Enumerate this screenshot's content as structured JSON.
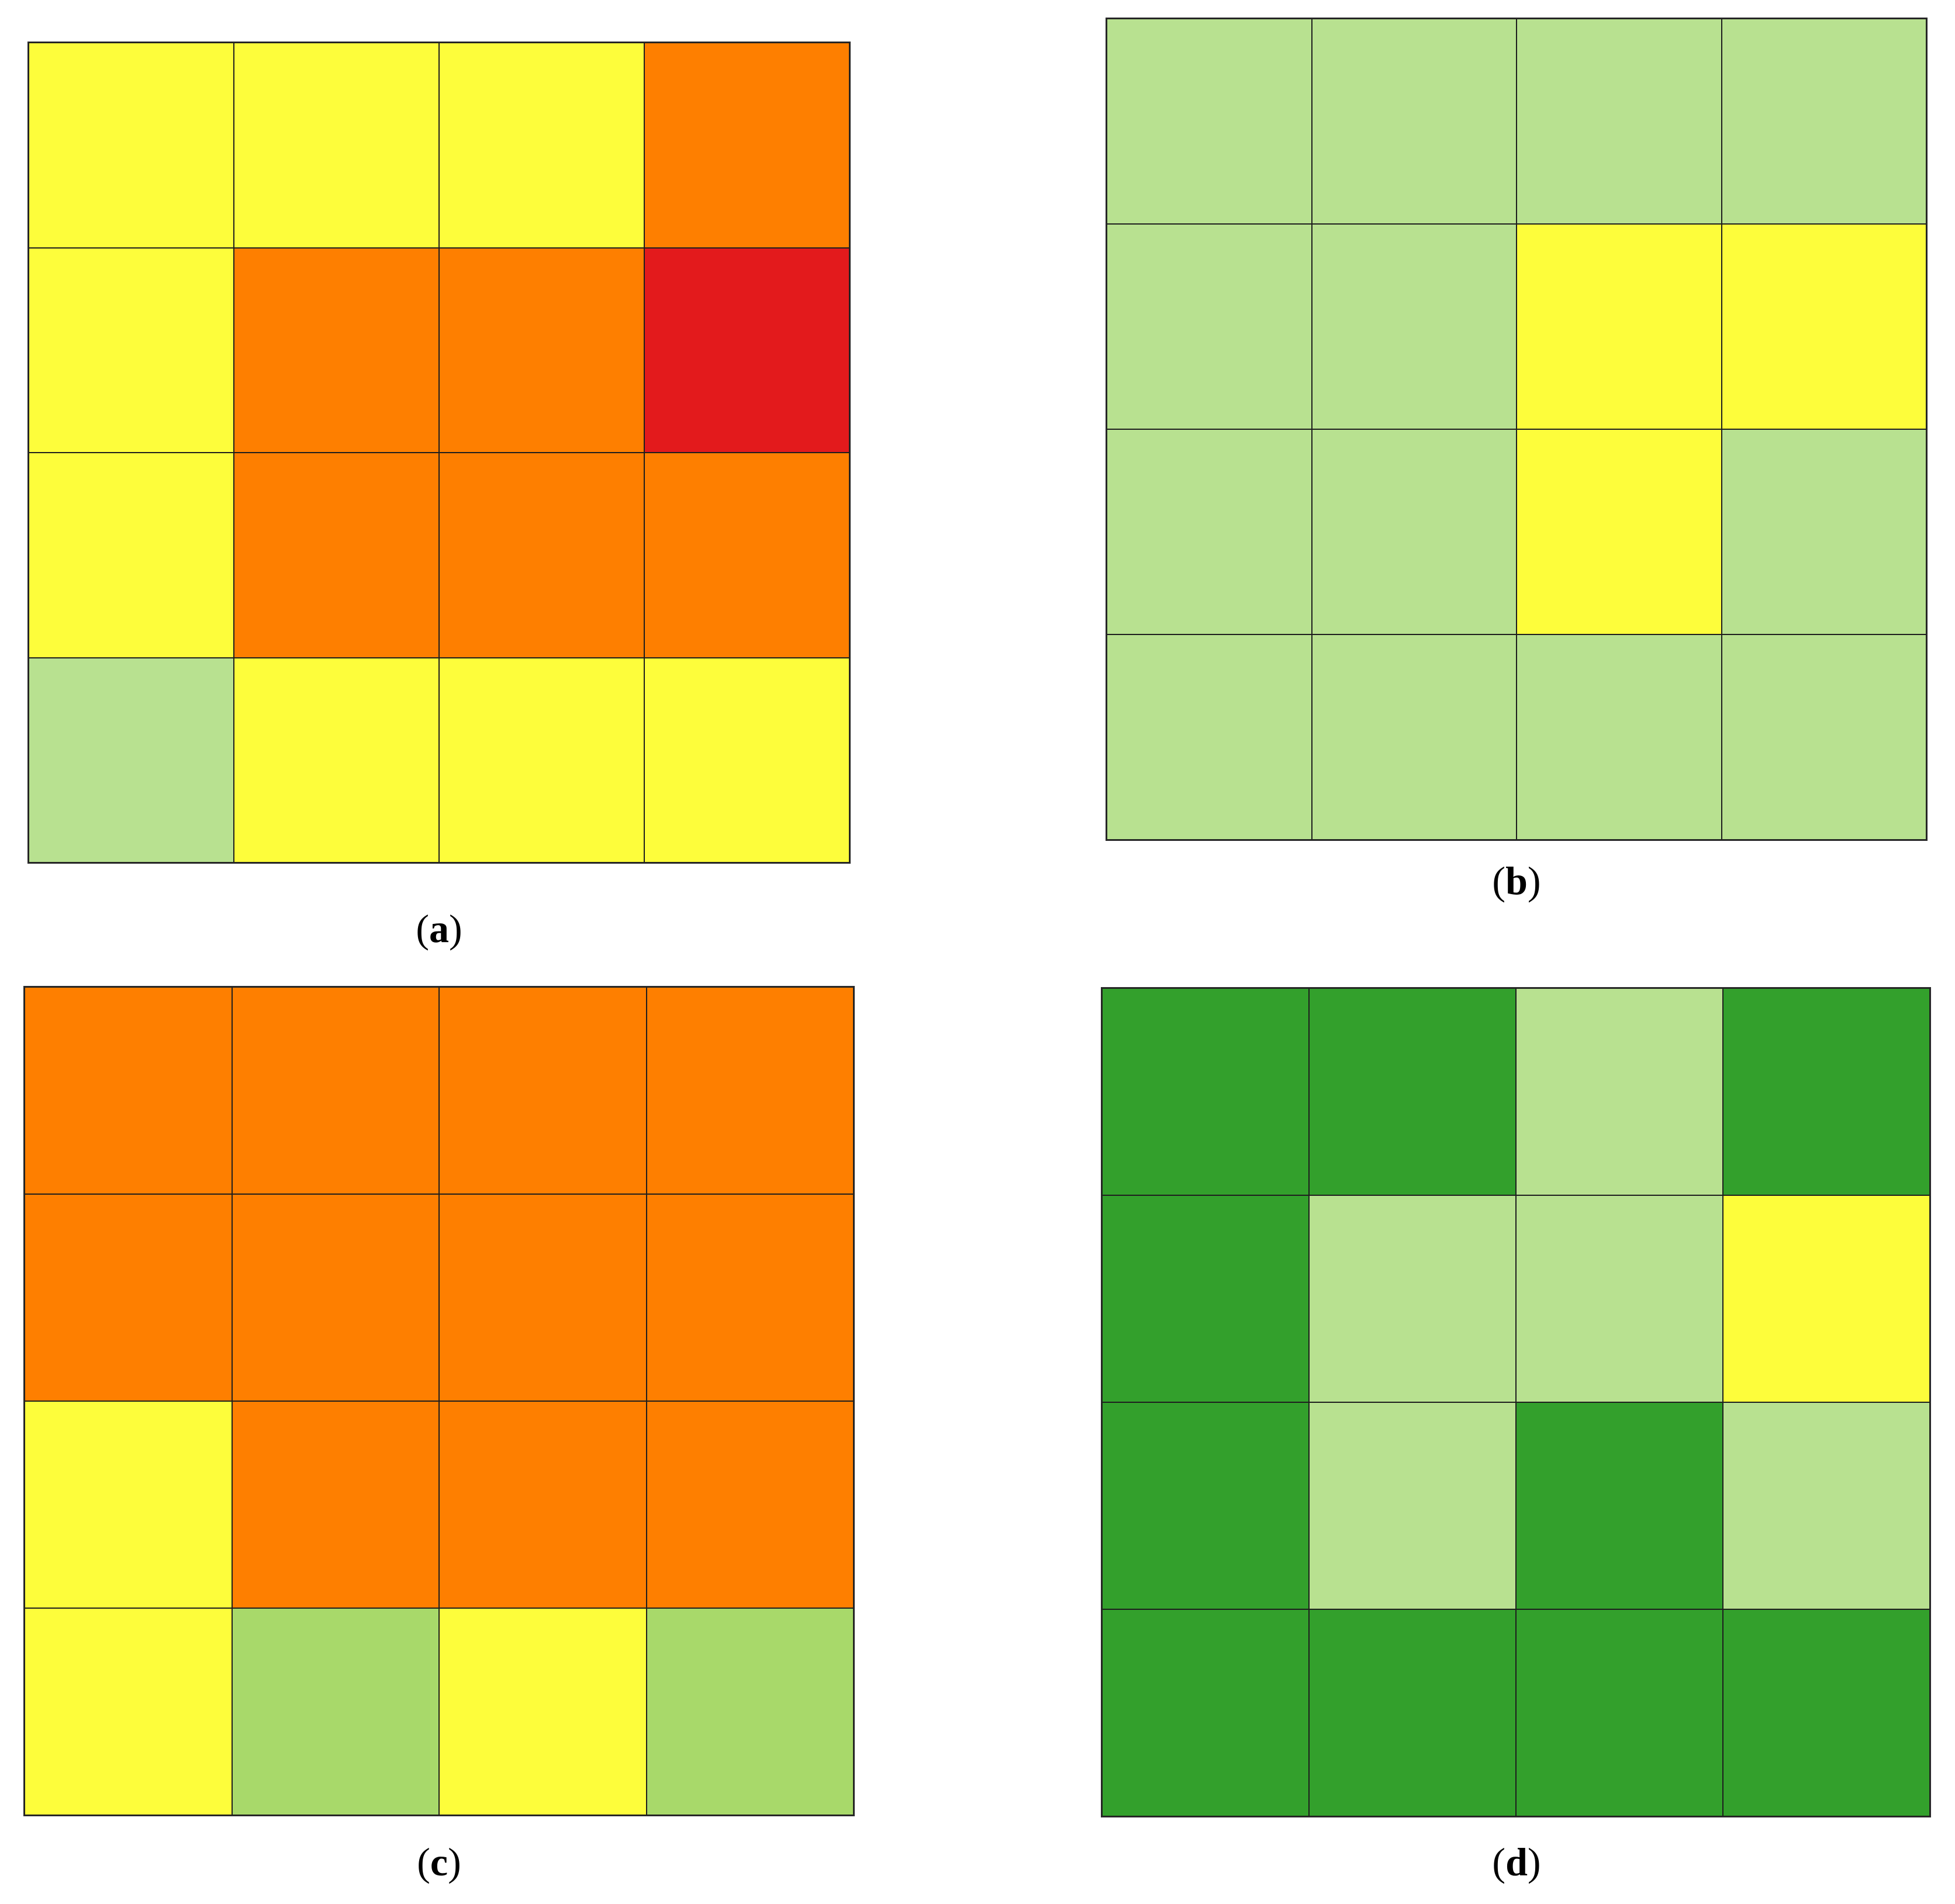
{
  "palette": {
    "Y": "#fdfd3b",
    "O": "#fe7f00",
    "R": "#e31a1c",
    "LG": "#b8e190",
    "MG": "#a8d96a",
    "DG": "#33a02c"
  },
  "chart_data": [
    {
      "type": "heatmap",
      "panel": "a",
      "caption": {
        "open": "(",
        "letter": "a",
        "close": ")"
      },
      "cells": [
        [
          "Y",
          "Y",
          "Y",
          "O"
        ],
        [
          "Y",
          "O",
          "O",
          "R"
        ],
        [
          "Y",
          "O",
          "O",
          "O"
        ],
        [
          "LG",
          "Y",
          "Y",
          "Y"
        ]
      ]
    },
    {
      "type": "heatmap",
      "panel": "b",
      "caption": {
        "open": "(",
        "letter": "b",
        "close": ")"
      },
      "cells": [
        [
          "LG",
          "LG",
          "LG",
          "LG"
        ],
        [
          "LG",
          "LG",
          "Y",
          "Y"
        ],
        [
          "LG",
          "LG",
          "Y",
          "LG"
        ],
        [
          "LG",
          "LG",
          "LG",
          "LG"
        ]
      ]
    },
    {
      "type": "heatmap",
      "panel": "c",
      "caption": {
        "open": "(",
        "letter": "c",
        "close": ")"
      },
      "cells": [
        [
          "O",
          "O",
          "O",
          "O"
        ],
        [
          "O",
          "O",
          "O",
          "O"
        ],
        [
          "Y",
          "O",
          "O",
          "O"
        ],
        [
          "Y",
          "MG",
          "Y",
          "MG"
        ]
      ]
    },
    {
      "type": "heatmap",
      "panel": "d",
      "caption": {
        "open": "(",
        "letter": "d",
        "close": ")"
      },
      "cells": [
        [
          "DG",
          "DG",
          "LG",
          "DG"
        ],
        [
          "DG",
          "LG",
          "LG",
          "Y"
        ],
        [
          "DG",
          "LG",
          "DG",
          "LG"
        ],
        [
          "DG",
          "DG",
          "DG",
          "DG"
        ]
      ]
    }
  ]
}
